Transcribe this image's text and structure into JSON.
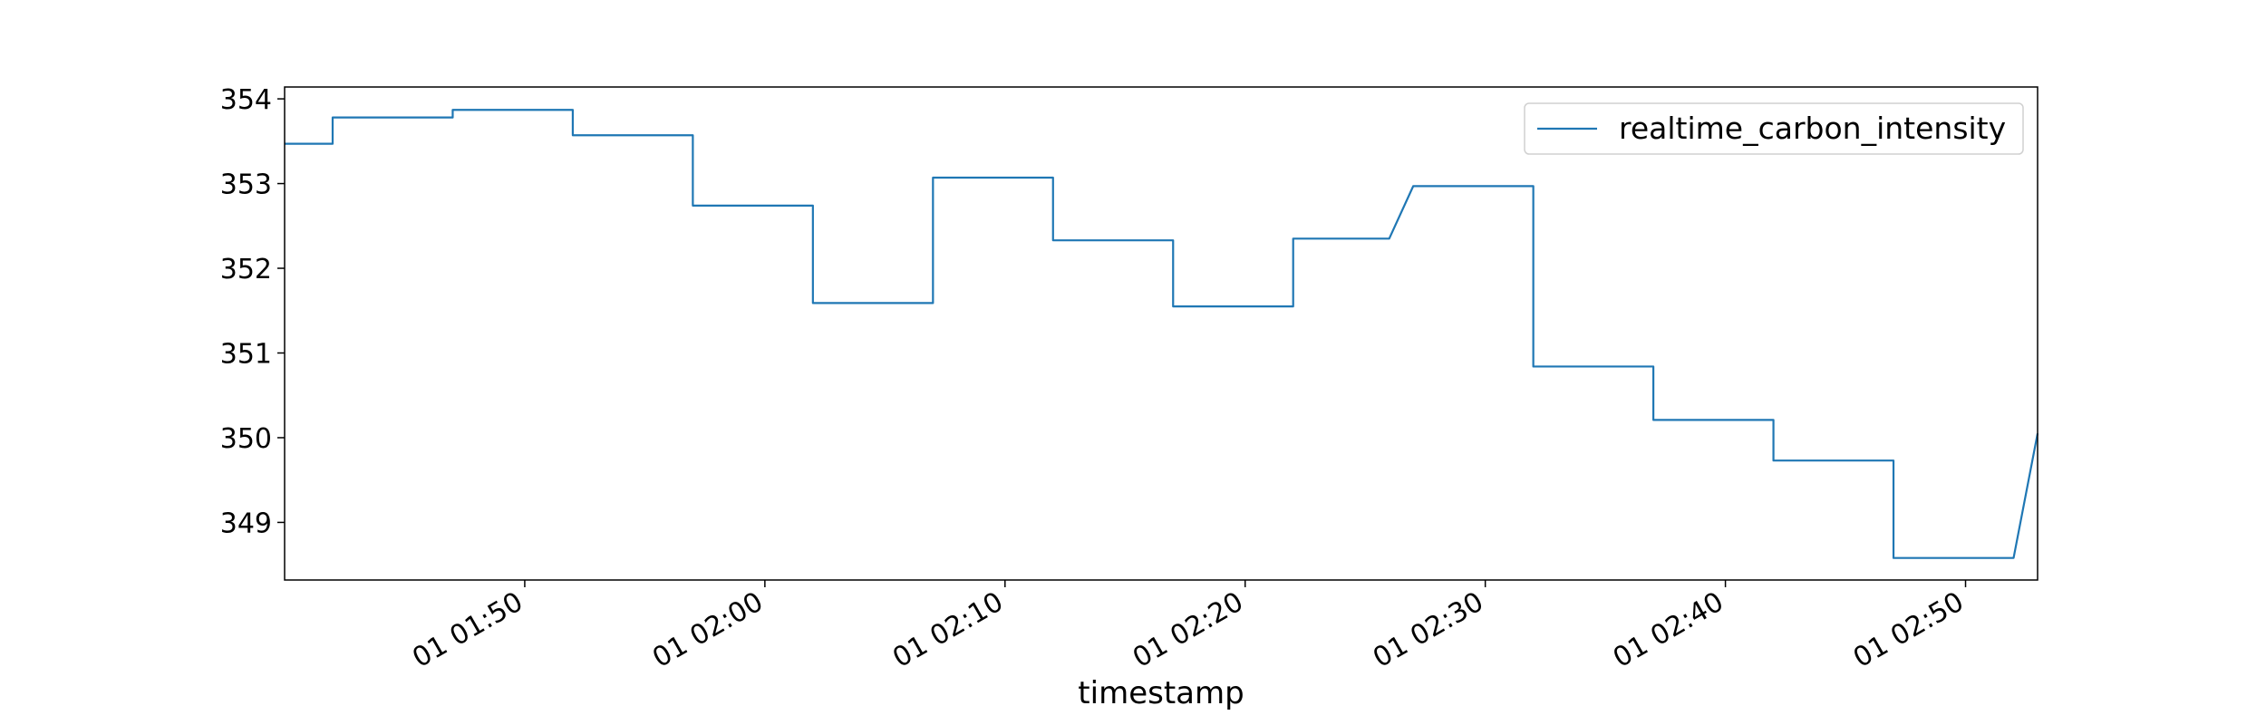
{
  "chart_data": {
    "type": "line",
    "x_label": "timestamp",
    "x": [
      "01 01:40",
      "01 01:42",
      "01 01:42",
      "01 01:47",
      "01 01:47",
      "01 01:52",
      "01 01:52",
      "01 01:57",
      "01 01:57",
      "01 02:02",
      "01 02:02",
      "01 02:07",
      "01 02:07",
      "01 02:12",
      "01 02:12",
      "01 02:17",
      "01 02:17",
      "01 02:22",
      "01 02:22",
      "01 02:26",
      "01 02:27",
      "01 02:32",
      "01 02:32",
      "01 02:37",
      "01 02:37",
      "01 02:42",
      "01 02:42",
      "01 02:47",
      "01 02:47",
      "01 02:52",
      "01 02:53"
    ],
    "series": [
      {
        "name": "realtime_carbon_intensity",
        "color": "#1f77b4",
        "values": [
          353.47,
          353.47,
          353.78,
          353.78,
          353.87,
          353.87,
          353.57,
          353.57,
          352.74,
          352.74,
          351.59,
          351.59,
          353.07,
          353.07,
          352.33,
          352.33,
          351.55,
          351.55,
          352.35,
          352.35,
          352.97,
          352.97,
          350.84,
          350.84,
          350.21,
          350.21,
          349.73,
          349.73,
          348.58,
          348.58,
          350.05
        ]
      }
    ],
    "xlim": [
      "01 01:40",
      "01 02:53"
    ],
    "xticks": [
      "01 01:50",
      "01 02:00",
      "01 02:10",
      "01 02:20",
      "01 02:30",
      "01 02:40",
      "01 02:50"
    ],
    "ylim": [
      348.32,
      354.14
    ],
    "yticks": [
      349,
      350,
      351,
      352,
      353,
      354
    ],
    "grid": false,
    "legend": "upper right"
  }
}
